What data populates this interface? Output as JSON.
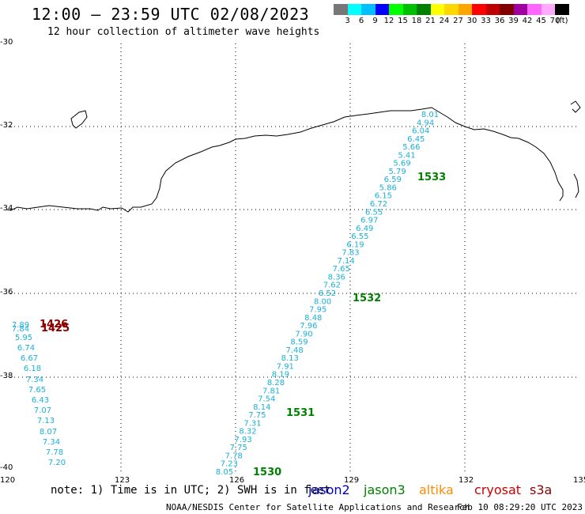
{
  "header": {
    "title": "12:00 – 23:59 UTC 02/08/2023",
    "subtitle": "12 hour collection of altimeter wave heights"
  },
  "scale": {
    "labels": [
      "3",
      "6",
      "9",
      "12",
      "15",
      "18",
      "21",
      "24",
      "27",
      "30",
      "33",
      "36",
      "39",
      "42",
      "45",
      "70"
    ],
    "unit": "(ft)",
    "colors": [
      "#777777",
      "#00ffff",
      "#00bfff",
      "#0000ff",
      "#00ff00",
      "#00c000",
      "#008000",
      "#ffff00",
      "#ffd700",
      "#ffa500",
      "#ff0000",
      "#c00000",
      "#800000",
      "#a000a0",
      "#ff66ff",
      "#ffaaff",
      "#000000"
    ]
  },
  "axes": {
    "lat_labels": [
      "-30",
      "-32",
      "-34",
      "-36",
      "-38",
      "-40"
    ],
    "lon_labels": [
      "120",
      "123",
      "126",
      "129",
      "132",
      "135"
    ]
  },
  "tracks": {
    "track_1530": {
      "pass_label": "1530",
      "values": [
        "8.01",
        "4.94",
        "6.04",
        "6.45",
        "5.66",
        "5.41",
        "5.69",
        "5.79",
        "6.59",
        "5.86",
        "6.15",
        "6.72",
        "6.55",
        "6.97",
        "6.49",
        "6.55",
        "6.19",
        "7.83",
        "7.14",
        "7.65",
        "8.36",
        "7.62",
        "8.52",
        "8.00",
        "7.95",
        "8.48",
        "7.96",
        "7.90",
        "8.59",
        "7.48",
        "8.13",
        "7.91",
        "8.19",
        "8.28",
        "7.81",
        "7.54",
        "8.14",
        "7.75",
        "7.31",
        "8.32",
        "7.93",
        "7.75",
        "7.78",
        "7.23",
        "8.05"
      ]
    },
    "pass_labels_main": [
      "1533",
      "1532",
      "1531",
      "1530"
    ],
    "track_1426": {
      "pass_label": "1426",
      "pass_label_2": "1425",
      "values": [
        "7.89",
        "7.84",
        "5.95",
        "6.74",
        "6.67",
        "6.18",
        "7.34",
        "7.65",
        "6.43",
        "7.07",
        "7.13",
        "8.07",
        "7.34",
        "7.78",
        "7.20"
      ]
    }
  },
  "footer": {
    "note": "note: 1) Time is in UTC; 2) SWH is in feet",
    "legend": [
      {
        "label": "jason2",
        "color": "#0000cc"
      },
      {
        "label": "jason3",
        "color": "#008000"
      },
      {
        "label": "altika",
        "color": "#ff8c00"
      },
      {
        "label": "cryosat",
        "color": "#cc0000"
      },
      {
        "label": "s3a",
        "color": "#8b0000"
      }
    ],
    "credit": "NOAA/NESDIS Center for Satellite Applications and Research",
    "timestamp": "Feb 10 08:29:20 UTC 2023"
  },
  "colors": {
    "track_text": "#1ab0d8",
    "pass_green": "#008000",
    "pass_maroon": "#8b0000",
    "coast": "#000000",
    "grid": "#000000"
  }
}
